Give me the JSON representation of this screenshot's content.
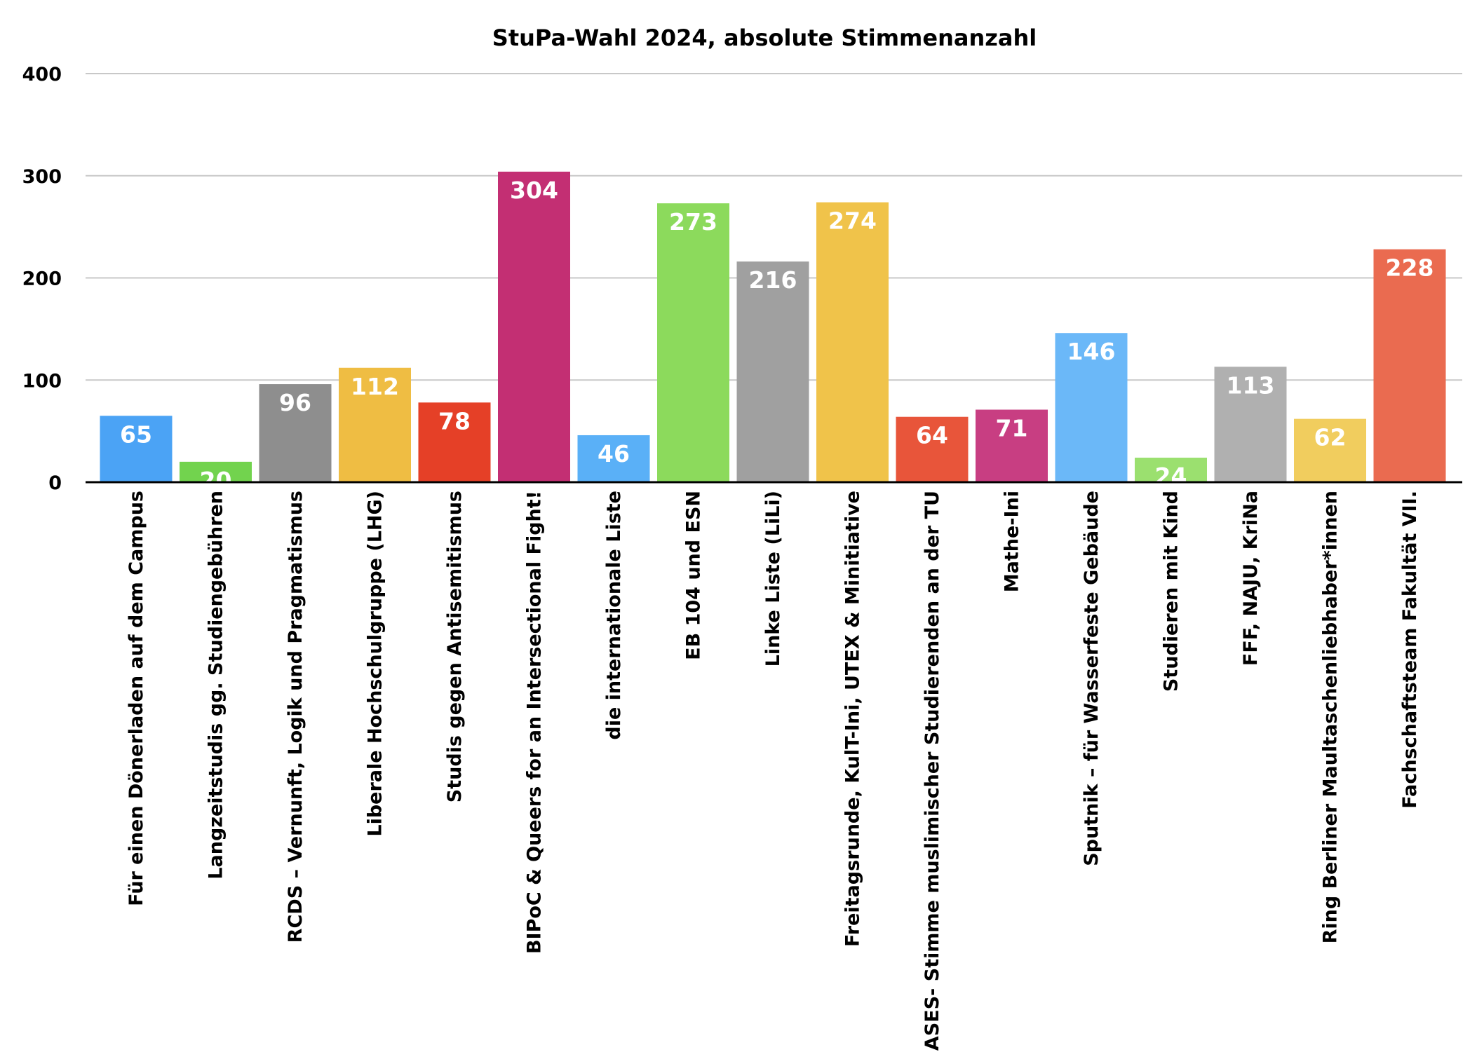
{
  "chart_data": {
    "type": "bar",
    "title": "StuPa-Wahl 2024, absolute Stimmenanzahl",
    "xlabel": "",
    "ylabel": "",
    "ylim": [
      0,
      400
    ],
    "yticks": [
      0,
      100,
      200,
      300,
      400
    ],
    "grid": true,
    "legend": "none",
    "categories": [
      "Für einen Dönerladen auf dem Campus",
      "Langzeitstudis gg. Studiengebühren",
      "RCDS – Vernunft, Logik und Pragmatismus",
      "Liberale Hochschulgruppe (LHG)",
      "Studis gegen Antisemitismus",
      "BIPoC & Queers for an Intersectional Fight!",
      "die internationale Liste",
      "EB 104 und ESN",
      "Linke Liste (LiLi)",
      "Freitagsrunde, KulT-Ini, UTEX & Minitiative",
      "ASES- Stimme muslimischer Studierenden an der TU",
      "Mathe-Ini",
      "Sputnik – für Wasserfeste Gebäude",
      "Studieren mit Kind",
      "FFF, NAJU, KriNa",
      "Ring Berliner Maultaschenliebhaber*innen",
      "Fachschaftsteam Fakultät VII."
    ],
    "values": [
      65,
      20,
      96,
      112,
      78,
      304,
      46,
      273,
      216,
      274,
      64,
      71,
      146,
      24,
      113,
      62,
      228
    ],
    "colors": [
      "#4ba3f5",
      "#72d34e",
      "#8e8e8e",
      "#efbd43",
      "#e54027",
      "#c32f73",
      "#5ab0f7",
      "#8cda5c",
      "#a0a0a0",
      "#f0c34a",
      "#e8553a",
      "#c83e82",
      "#6bb8f8",
      "#9be06f",
      "#b0b0b0",
      "#f1cd5e",
      "#ea6b50"
    ]
  }
}
